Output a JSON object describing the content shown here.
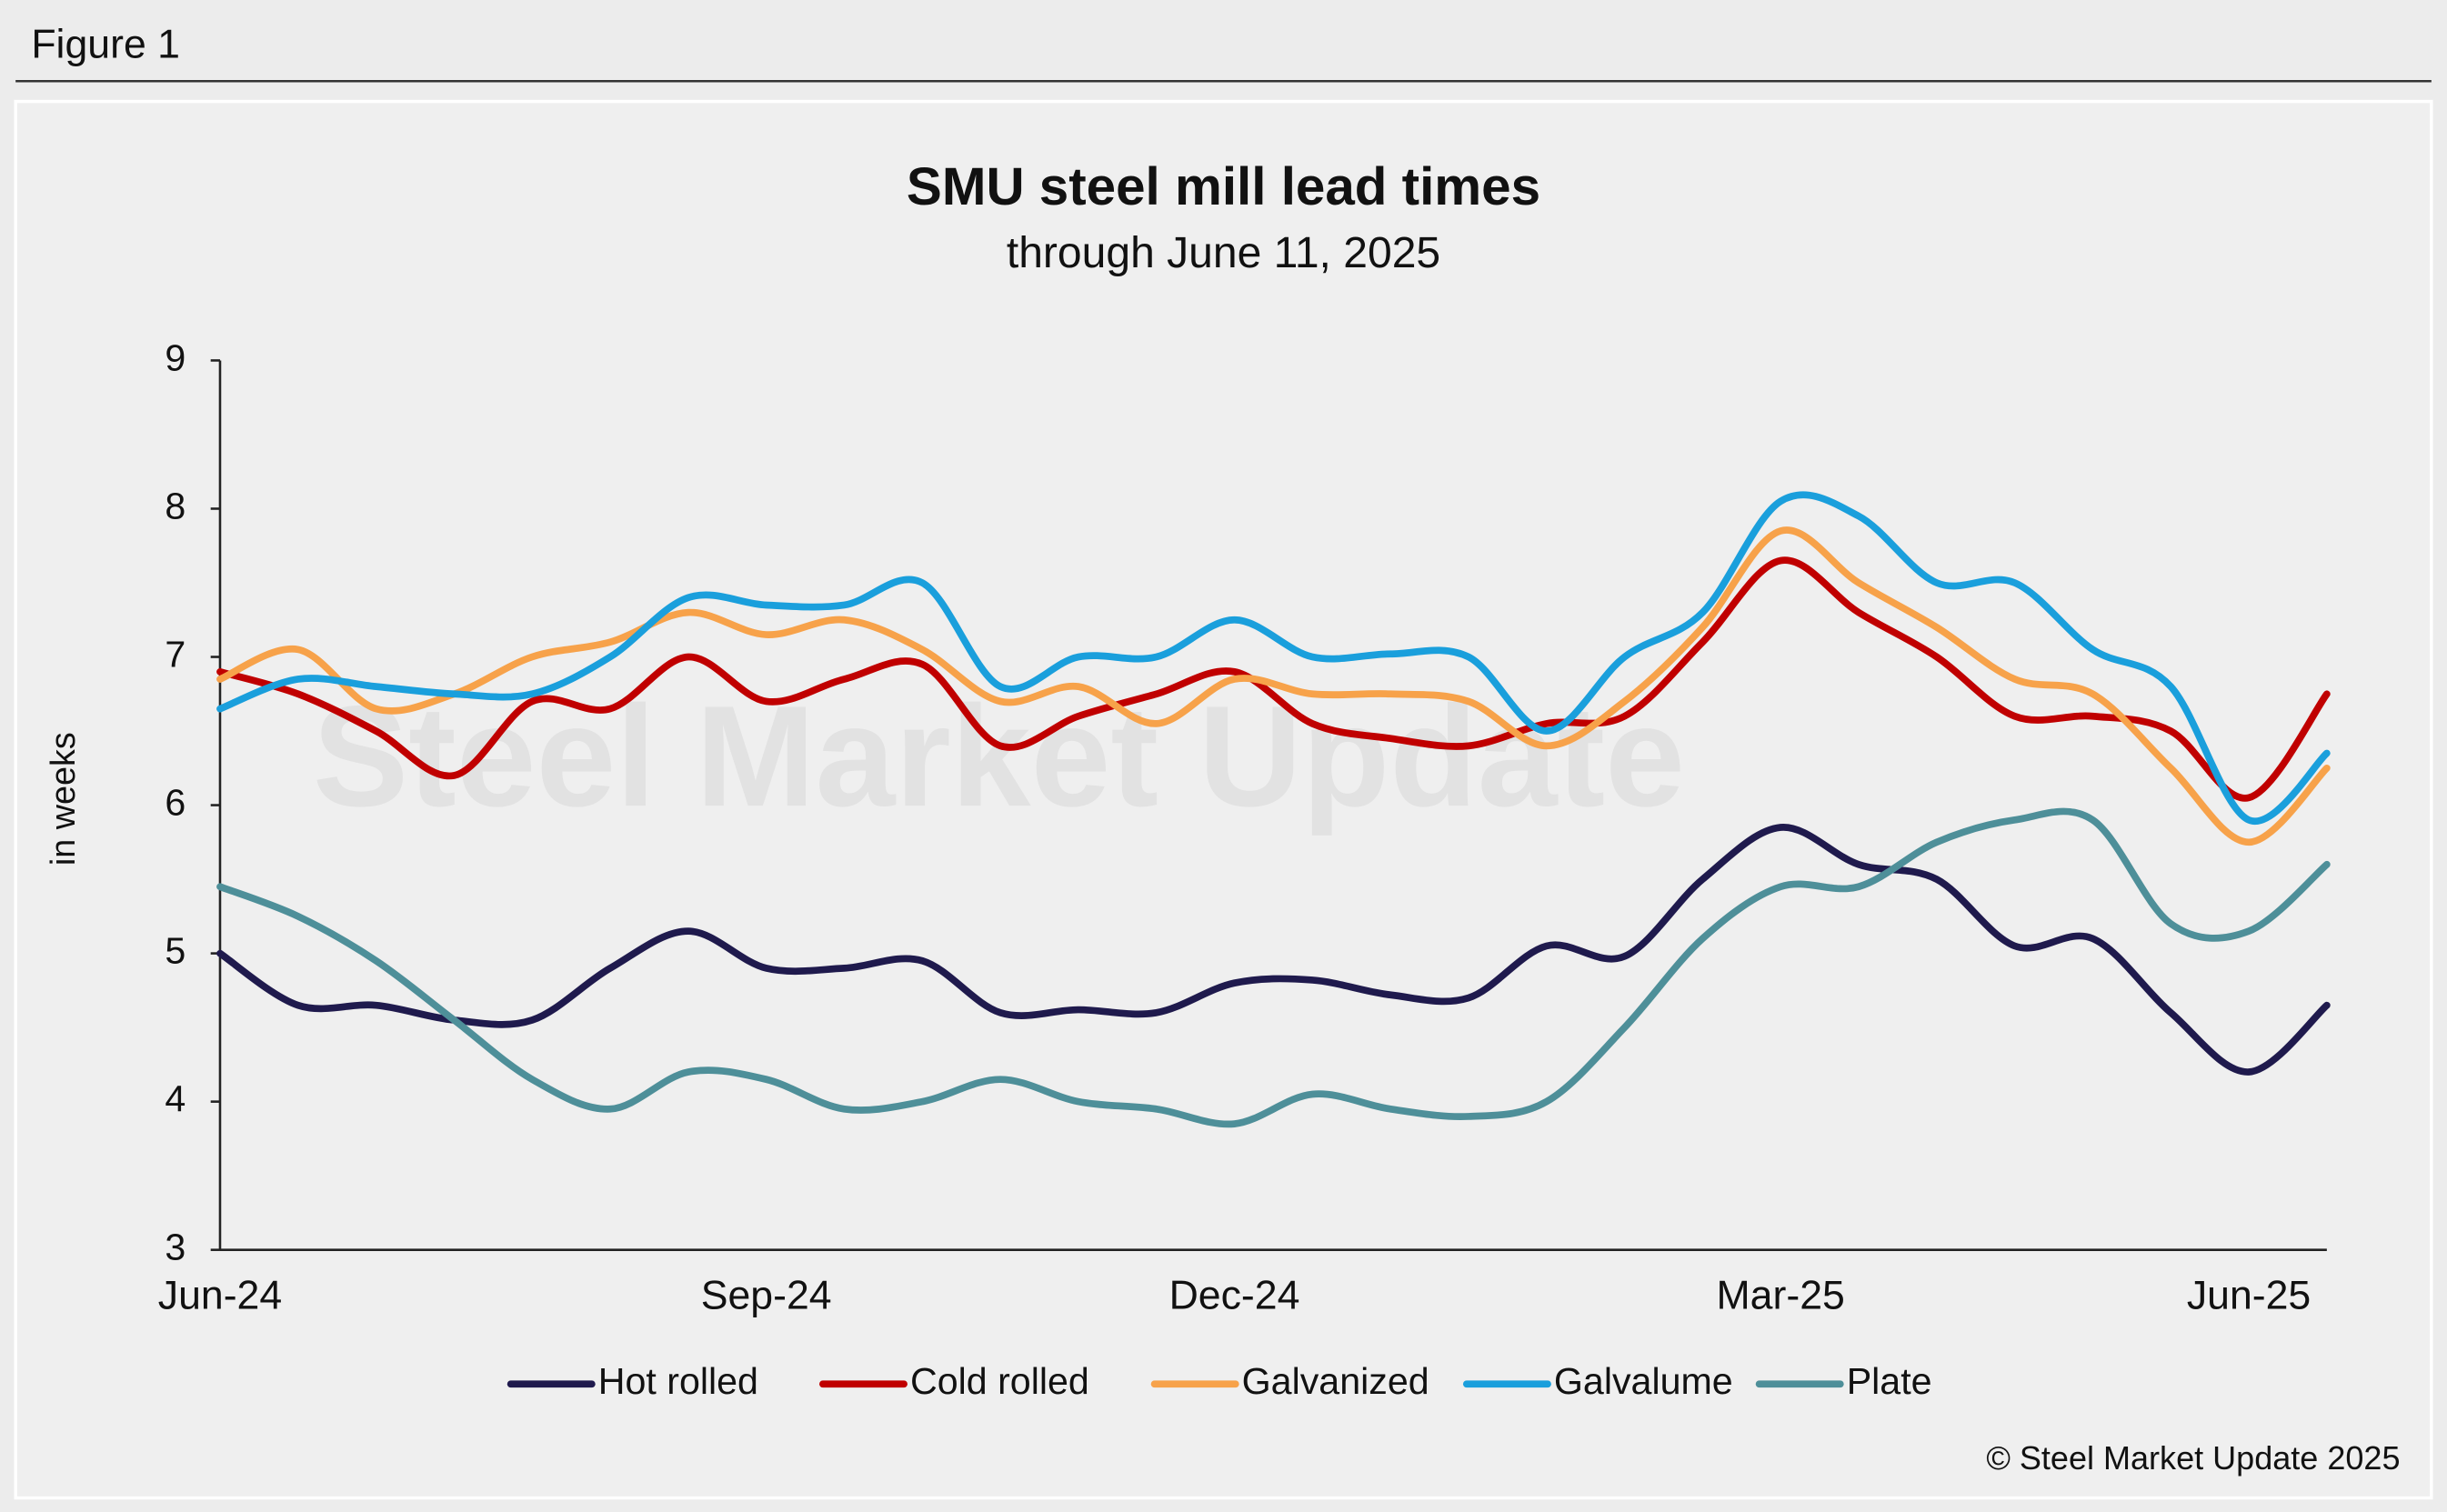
{
  "figure_label": "Figure 1",
  "copyright": "© Steel Market Update 2025",
  "watermark": "Steel Market Update",
  "chart_data": {
    "type": "line",
    "title": "SMU steel mill lead times",
    "subtitle": "through June 11, 2025",
    "y_label": "in weeks",
    "categories": [
      "Jun-24",
      null,
      null,
      null,
      null,
      null,
      null,
      "Sep-24",
      null,
      null,
      null,
      null,
      null,
      "Dec-24",
      null,
      null,
      null,
      null,
      null,
      null,
      "Mar-25",
      null,
      null,
      null,
      null,
      null,
      "Jun-25",
      null
    ],
    "ylim": [
      3,
      9
    ],
    "yticks": [
      3,
      4,
      5,
      6,
      7,
      8,
      9
    ],
    "grid": false,
    "legend": "bottom",
    "series": [
      {
        "name": "Hot rolled",
        "color": "#1f1a4d",
        "values": [
          5.0,
          4.65,
          4.65,
          4.55,
          4.55,
          4.9,
          5.15,
          4.9,
          4.9,
          4.95,
          4.6,
          4.62,
          4.6,
          4.8,
          4.82,
          4.72,
          4.7,
          5.05,
          4.98,
          5.5,
          5.85,
          5.6,
          5.5,
          5.05,
          5.1,
          4.6,
          4.2,
          4.65
        ]
      },
      {
        "name": "Cold rolled",
        "color": "#c00000",
        "values": [
          6.9,
          6.75,
          6.5,
          6.2,
          6.7,
          6.65,
          7.0,
          6.7,
          6.85,
          6.95,
          6.4,
          6.6,
          6.75,
          6.9,
          6.55,
          6.45,
          6.4,
          6.55,
          6.6,
          7.1,
          7.65,
          7.3,
          7.0,
          6.6,
          6.6,
          6.5,
          6.05,
          6.75
        ]
      },
      {
        "name": "Galvanized",
        "color": "#f7a24a",
        "values": [
          6.85,
          7.05,
          6.65,
          6.75,
          7.0,
          7.1,
          7.3,
          7.15,
          7.25,
          7.05,
          6.7,
          6.8,
          6.55,
          6.85,
          6.75,
          6.75,
          6.7,
          6.4,
          6.7,
          7.2,
          7.85,
          7.5,
          7.2,
          6.85,
          6.75,
          6.25,
          5.75,
          6.25
        ]
      },
      {
        "name": "Galvalume",
        "color": "#1a9fdc",
        "values": [
          6.65,
          6.85,
          6.8,
          6.75,
          6.75,
          7.0,
          7.4,
          7.35,
          7.35,
          7.5,
          6.8,
          7.0,
          7.0,
          7.25,
          7.0,
          7.02,
          7.0,
          6.5,
          7.0,
          7.3,
          8.05,
          7.95,
          7.5,
          7.5,
          7.05,
          6.8,
          5.9,
          6.35
        ]
      },
      {
        "name": "Plate",
        "color": "#4e8f99",
        "values": [
          5.45,
          5.25,
          4.95,
          4.55,
          4.15,
          3.95,
          4.2,
          4.15,
          3.95,
          4.0,
          4.15,
          4.0,
          3.95,
          3.85,
          4.05,
          3.95,
          3.9,
          4.0,
          4.5,
          5.1,
          5.45,
          5.45,
          5.75,
          5.9,
          5.9,
          5.2,
          5.15,
          5.6
        ]
      }
    ]
  }
}
